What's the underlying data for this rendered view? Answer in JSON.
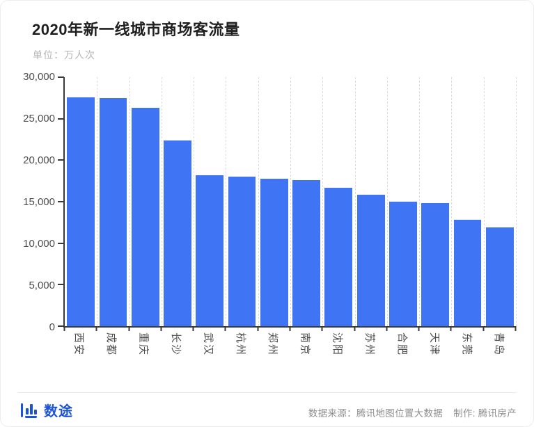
{
  "colors": {
    "bar": "#3F75F5",
    "brand": "#1C54D8",
    "axis": "#3A3A3A",
    "grid": "#DCDCDC"
  },
  "chart_data": {
    "type": "bar",
    "title": "2020年新一线城市商场客流量",
    "subtitle_unit": "单位：万人次",
    "categories": [
      "西安",
      "成都",
      "重庆",
      "长沙",
      "武汉",
      "杭州",
      "郑州",
      "南京",
      "沈阳",
      "苏州",
      "合肥",
      "天津",
      "东莞",
      "青岛"
    ],
    "values": [
      27600,
      27500,
      26300,
      22400,
      18200,
      18000,
      17800,
      17600,
      16700,
      15800,
      15000,
      14800,
      12800,
      11900
    ],
    "xlabel": "",
    "ylabel": "万人次",
    "ylim": [
      0,
      30000
    ],
    "ytick_step": 5000,
    "ytick_labels": [
      "0",
      "5,000",
      "10,000",
      "15,000",
      "20,000",
      "25,000",
      "30,000"
    ],
    "grid": "vertical-dashed",
    "legend": "none"
  },
  "footer": {
    "logo_text": "数途",
    "source_label": "数据来源：腾讯地图位置大数据",
    "credit_label": "制作: 腾讯房产"
  }
}
